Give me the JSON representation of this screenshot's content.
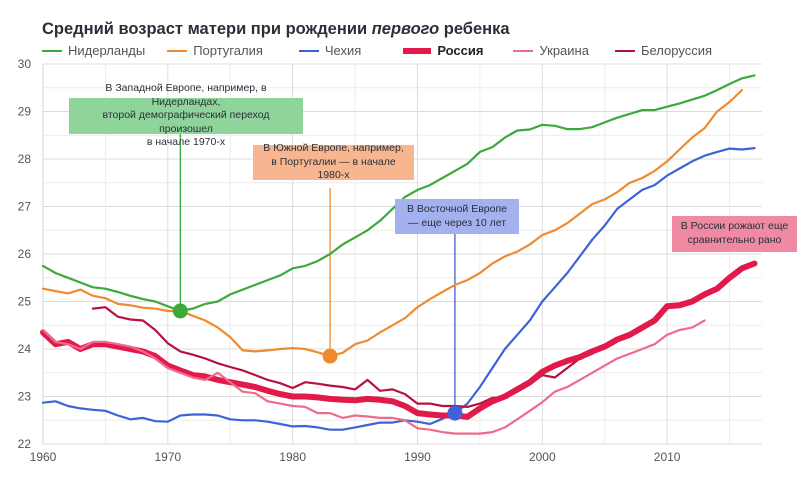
{
  "title": {
    "pre": "Средний возраст матери при рождении ",
    "italic": "первого",
    "post": " ребенка"
  },
  "chart_data": {
    "type": "line",
    "title": "Средний возраст матери при рождении первого ребенка",
    "xlabel": "",
    "ylabel": "",
    "xlim": [
      1960,
      2017.6
    ],
    "ylim": [
      22,
      30
    ],
    "xticks": [
      1960,
      1970,
      1980,
      1990,
      2000,
      2010
    ],
    "yticks": [
      22,
      23,
      24,
      25,
      26,
      27,
      28,
      29,
      30
    ],
    "grid": true,
    "legend_position": "top",
    "series": [
      {
        "name": "Нидерланды",
        "color": "#3aaa3a",
        "start": 1960,
        "bold": false,
        "values": [
          25.75,
          25.6,
          25.5,
          25.4,
          25.3,
          25.27,
          25.2,
          25.12,
          25.05,
          25.0,
          24.9,
          24.8,
          24.85,
          24.95,
          25.0,
          25.15,
          25.25,
          25.35,
          25.45,
          25.55,
          25.7,
          25.75,
          25.85,
          26.0,
          26.2,
          26.35,
          26.5,
          26.7,
          26.95,
          27.2,
          27.35,
          27.45,
          27.6,
          27.75,
          27.9,
          28.15,
          28.25,
          28.45,
          28.6,
          28.62,
          28.72,
          28.7,
          28.63,
          28.63,
          28.67,
          28.77,
          28.87,
          28.95,
          29.03,
          29.03,
          29.1,
          29.17,
          29.25,
          29.33,
          29.45,
          29.58,
          29.7,
          29.76
        ]
      },
      {
        "name": "Португалия",
        "color": "#f08a30",
        "start": 1960,
        "bold": false,
        "values": [
          25.27,
          25.22,
          25.17,
          25.25,
          25.12,
          25.07,
          24.95,
          24.92,
          24.87,
          24.85,
          24.8,
          24.8,
          24.7,
          24.6,
          24.45,
          24.25,
          23.97,
          23.95,
          23.97,
          24.0,
          24.02,
          24.0,
          23.93,
          23.85,
          23.92,
          24.1,
          24.18,
          24.35,
          24.5,
          24.65,
          24.88,
          25.05,
          25.2,
          25.35,
          25.45,
          25.6,
          25.8,
          25.95,
          26.05,
          26.2,
          26.4,
          26.5,
          26.65,
          26.85,
          27.05,
          27.15,
          27.3,
          27.5,
          27.6,
          27.75,
          27.95,
          28.2,
          28.45,
          28.65,
          29.0,
          29.2,
          29.45
        ]
      },
      {
        "name": "Чехия",
        "color": "#3f62d6",
        "start": 1960,
        "bold": false,
        "values": [
          22.87,
          22.9,
          22.8,
          22.75,
          22.72,
          22.7,
          22.6,
          22.52,
          22.55,
          22.48,
          22.47,
          22.6,
          22.62,
          22.62,
          22.6,
          22.52,
          22.5,
          22.5,
          22.47,
          22.42,
          22.37,
          22.38,
          22.35,
          22.3,
          22.3,
          22.35,
          22.4,
          22.45,
          22.45,
          22.5,
          22.47,
          22.42,
          22.53,
          22.65,
          22.85,
          23.2,
          23.6,
          24.0,
          24.3,
          24.6,
          25.0,
          25.3,
          25.6,
          25.95,
          26.3,
          26.6,
          26.95,
          27.15,
          27.35,
          27.45,
          27.65,
          27.8,
          27.95,
          28.07,
          28.15,
          28.22,
          28.2,
          28.23
        ]
      },
      {
        "name": "Россия",
        "color": "#e21a4b",
        "start": 1960,
        "bold": true,
        "values": [
          24.35,
          24.1,
          24.15,
          24.0,
          24.1,
          24.1,
          24.05,
          24.0,
          23.95,
          23.85,
          23.65,
          23.55,
          23.45,
          23.42,
          23.35,
          23.3,
          23.25,
          23.2,
          23.12,
          23.05,
          23.0,
          23.0,
          22.98,
          22.95,
          22.93,
          22.92,
          22.95,
          22.93,
          22.9,
          22.8,
          22.65,
          22.62,
          22.6,
          22.6,
          22.57,
          22.75,
          22.9,
          23.0,
          23.15,
          23.3,
          23.52,
          23.65,
          23.75,
          23.83,
          23.95,
          24.05,
          24.2,
          24.3,
          24.45,
          24.6,
          24.9,
          24.92,
          25.0,
          25.15,
          25.27,
          25.5,
          25.7,
          25.8
        ]
      },
      {
        "name": "Украина",
        "color": "#ee6b8b",
        "start": 1960,
        "bold": false,
        "values": [
          24.4,
          24.15,
          24.1,
          24.0,
          24.15,
          24.15,
          24.1,
          24.05,
          23.95,
          23.8,
          23.6,
          23.5,
          23.4,
          23.35,
          23.5,
          23.3,
          23.1,
          23.07,
          22.9,
          22.85,
          22.8,
          22.78,
          22.65,
          22.65,
          22.55,
          22.6,
          22.58,
          22.55,
          22.55,
          22.5,
          22.33,
          22.3,
          22.25,
          22.22,
          22.22,
          22.22,
          22.25,
          22.35,
          22.52,
          22.7,
          22.88,
          23.1,
          23.2,
          23.35,
          23.5,
          23.65,
          23.8,
          23.9,
          24.0,
          24.1,
          24.3,
          24.4,
          24.45,
          24.6
        ]
      },
      {
        "name": "Белоруссия",
        "color": "#b5123f",
        "start": 1964,
        "bold": false,
        "values": [
          24.85,
          24.88,
          24.68,
          24.62,
          24.6,
          24.4,
          24.12,
          23.95,
          23.88,
          23.8,
          23.7,
          23.62,
          23.55,
          23.45,
          23.35,
          23.28,
          23.18,
          23.3,
          23.27,
          23.23,
          23.2,
          23.15,
          23.35,
          23.12,
          23.15,
          23.05,
          22.85,
          22.85,
          22.8,
          22.8,
          22.78,
          22.85,
          22.97,
          22.97,
          23.1,
          23.25,
          23.45,
          23.4,
          23.6,
          23.8,
          23.9
        ]
      }
    ],
    "markers": [
      {
        "series": "Нидерланды",
        "year": 1971,
        "value": 24.8,
        "color": "#3aaa3a"
      },
      {
        "series": "Португалия",
        "year": 1983,
        "value": 23.85,
        "color": "#f08a30"
      },
      {
        "series": "Чехия",
        "year": 1993,
        "value": 22.65,
        "color": "#3f62d6"
      }
    ],
    "annotations": [
      {
        "id": "west",
        "text_lines": [
          "В Западной Европе, например, в Нидерландах,",
          "второй демографический переход произошел",
          "в начале 1970-х"
        ],
        "bg": "#8fd49a",
        "line_color": "#3aaa3a",
        "year": 1971
      },
      {
        "id": "south",
        "text_lines": [
          "В Южной Европе, например,",
          "в Португалии — в начале 1980-х"
        ],
        "bg": "#f7b690",
        "line_color": "#f08a30",
        "year": 1983
      },
      {
        "id": "east",
        "text_lines": [
          "В Восточной Европе",
          "— еще через 10 лет"
        ],
        "bg": "#a3b1ee",
        "line_color": "#3f62d6",
        "year": 1993
      },
      {
        "id": "russia",
        "text_lines": [
          "В России рожают еще",
          "сравнительно рано"
        ],
        "bg": "#f08aa2",
        "line_color": null,
        "year": null
      }
    ]
  }
}
